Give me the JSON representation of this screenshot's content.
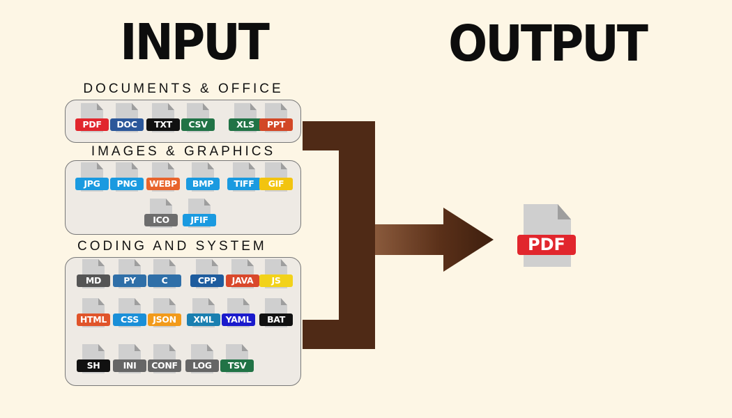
{
  "input_title": "INPUT",
  "output_title": "OUTPUT",
  "sections": [
    {
      "label": "DOCUMENTS & OFFICE",
      "files": [
        {
          "ext": "PDF",
          "color": "#e1262d"
        },
        {
          "ext": "DOC",
          "color": "#2b579a"
        },
        {
          "ext": "TXT",
          "color": "#111111"
        },
        {
          "ext": "CSV",
          "color": "#217346"
        },
        {
          "ext": "XLS",
          "color": "#217346"
        },
        {
          "ext": "PPT",
          "color": "#d24726"
        }
      ]
    },
    {
      "label": "IMAGES & GRAPHICS",
      "files": [
        {
          "ext": "JPG",
          "color": "#1a9ae0"
        },
        {
          "ext": "PNG",
          "color": "#1a9ae0"
        },
        {
          "ext": "WEBP",
          "color": "#e8632b"
        },
        {
          "ext": "BMP",
          "color": "#1a9ae0"
        },
        {
          "ext": "TIFF",
          "color": "#1a9ae0"
        },
        {
          "ext": "GIF",
          "color": "#f2c40f"
        },
        {
          "ext": "ICO",
          "color": "#6d6d6d"
        },
        {
          "ext": "JFIF",
          "color": "#1a9ae0"
        }
      ]
    },
    {
      "label": "CODING AND SYSTEM",
      "files": [
        {
          "ext": "MD",
          "color": "#555555"
        },
        {
          "ext": "PY",
          "color": "#2f6fa8"
        },
        {
          "ext": "C",
          "color": "#2f6fa8"
        },
        {
          "ext": "CPP",
          "color": "#1e5c9e"
        },
        {
          "ext": "JAVA",
          "color": "#d9482b"
        },
        {
          "ext": "JS",
          "color": "#f2d21a"
        },
        {
          "ext": "HTML",
          "color": "#e0542a"
        },
        {
          "ext": "CSS",
          "color": "#1a8fd8"
        },
        {
          "ext": "JSON",
          "color": "#f29a1a"
        },
        {
          "ext": "XML",
          "color": "#1a7fb0"
        },
        {
          "ext": "YAML",
          "color": "#1a1acc"
        },
        {
          "ext": "BAT",
          "color": "#111111"
        },
        {
          "ext": "SH",
          "color": "#111111"
        },
        {
          "ext": "INI",
          "color": "#666666"
        },
        {
          "ext": "CONF",
          "color": "#666666"
        },
        {
          "ext": "LOG",
          "color": "#666666"
        },
        {
          "ext": "TSV",
          "color": "#217346"
        }
      ]
    }
  ],
  "output_file": {
    "ext": "PDF",
    "color": "#e1262d"
  },
  "colors": {
    "background": "#fdf6e5",
    "connector": "#4f2a16",
    "panel": "#eeeae4"
  }
}
